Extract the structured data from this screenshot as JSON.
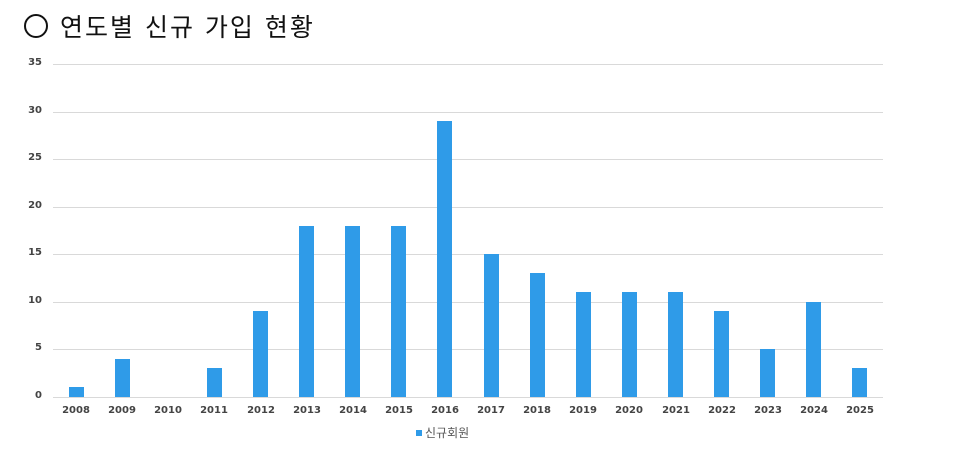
{
  "title": {
    "bullet": "circle-outline",
    "text": "연도별 신규 가입 현황"
  },
  "chart_data": {
    "type": "bar",
    "title": "연도별 신규 가입 현황",
    "xlabel": "",
    "ylabel": "",
    "categories": [
      "2008",
      "2009",
      "2010",
      "2011",
      "2012",
      "2013",
      "2014",
      "2015",
      "2016",
      "2017",
      "2018",
      "2019",
      "2020",
      "2021",
      "2022",
      "2023",
      "2024",
      "2025"
    ],
    "series": [
      {
        "name": "신규회원",
        "color": "#2f9be8",
        "values": [
          1,
          4,
          0,
          3,
          9,
          18,
          18,
          18,
          29,
          15,
          13,
          11,
          11,
          11,
          9,
          5,
          10,
          3
        ]
      }
    ],
    "ylim": [
      0,
      35
    ],
    "yticks": [
      0,
      5,
      10,
      15,
      20,
      25,
      30,
      35
    ],
    "grid": true,
    "legend_position": "bottom"
  },
  "legend": {
    "label": "신규회원"
  }
}
